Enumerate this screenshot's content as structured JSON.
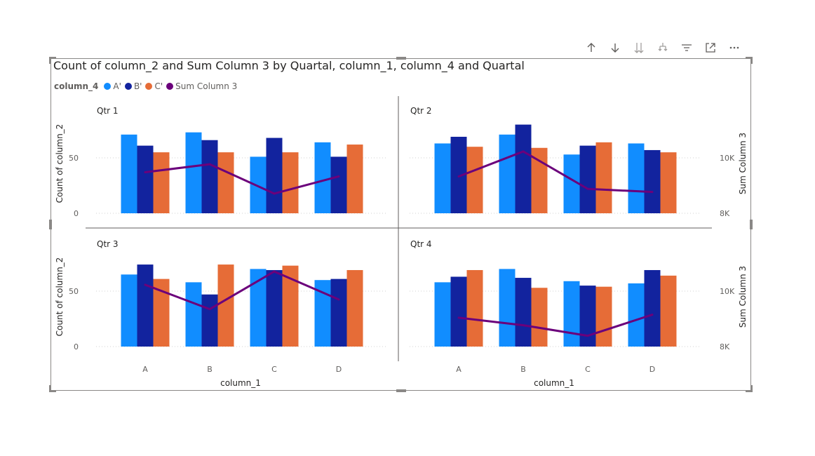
{
  "toolbar": {
    "buttons": [
      {
        "name": "drill-up-icon"
      },
      {
        "name": "drill-down-icon"
      },
      {
        "name": "expand-all-icon"
      },
      {
        "name": "drill-hierarchy-icon"
      },
      {
        "name": "filter-icon"
      },
      {
        "name": "focus-mode-icon"
      },
      {
        "name": "more-options-icon"
      }
    ]
  },
  "chart_data": {
    "type": "bar",
    "title": "Count of column_2 and Sum Column 3 by Quartal, column_1, column_4 and Quartal",
    "legend": {
      "title": "column_4",
      "placement": "top-left",
      "entries": [
        {
          "label": "A'",
          "color": "#118DFF"
        },
        {
          "label": "B'",
          "color": "#12239E"
        },
        {
          "label": "C'",
          "color": "#E66C37"
        },
        {
          "label": "Sum Column 3",
          "color": "#6B007B"
        }
      ]
    },
    "xlabel": "column_1",
    "ylabel": "Count of column_2",
    "y2label": "Sum Column 3",
    "categories": [
      "A",
      "B",
      "C",
      "D"
    ],
    "ylim": [
      0,
      100
    ],
    "yticks": [
      0,
      50
    ],
    "ytick_labels": [
      "0",
      "50"
    ],
    "y2lim": [
      8000,
      12000
    ],
    "y2ticks": [
      8000,
      10000
    ],
    "y2tick_labels": [
      "8K",
      "10K"
    ],
    "gridlines": true,
    "panels": [
      {
        "name": "Qtr 1",
        "series": [
          {
            "name": "A'",
            "values": [
              71,
              73,
              51,
              64
            ]
          },
          {
            "name": "B'",
            "values": [
              61,
              66,
              68,
              51
            ]
          },
          {
            "name": "C'",
            "values": [
              55,
              55,
              55,
              62
            ]
          }
        ],
        "line": {
          "name": "Sum Column 3",
          "values": [
            9480,
            9770,
            8710,
            9330
          ]
        }
      },
      {
        "name": "Qtr 2",
        "series": [
          {
            "name": "A'",
            "values": [
              63,
              71,
              53,
              63
            ]
          },
          {
            "name": "B'",
            "values": [
              69,
              80,
              61,
              57
            ]
          },
          {
            "name": "C'",
            "values": [
              60,
              59,
              64,
              55
            ]
          }
        ],
        "line": {
          "name": "Sum Column 3",
          "values": [
            9330,
            10230,
            8880,
            8770
          ]
        }
      },
      {
        "name": "Qtr 3",
        "series": [
          {
            "name": "A'",
            "values": [
              65,
              58,
              70,
              60
            ]
          },
          {
            "name": "B'",
            "values": [
              74,
              47,
              69,
              61
            ]
          },
          {
            "name": "C'",
            "values": [
              61,
              74,
              73,
              69
            ]
          }
        ],
        "line": {
          "name": "Sum Column 3",
          "values": [
            10230,
            9350,
            10710,
            9700
          ]
        }
      },
      {
        "name": "Qtr 4",
        "series": [
          {
            "name": "A'",
            "values": [
              58,
              70,
              59,
              57
            ]
          },
          {
            "name": "B'",
            "values": [
              63,
              62,
              55,
              69
            ]
          },
          {
            "name": "C'",
            "values": [
              69,
              53,
              54,
              64
            ]
          }
        ],
        "line": {
          "name": "Sum Column 3",
          "values": [
            9040,
            8770,
            8390,
            9150
          ]
        }
      }
    ]
  }
}
